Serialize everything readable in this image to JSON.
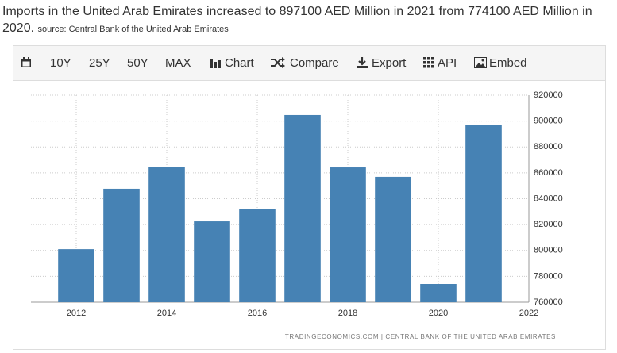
{
  "title": "Imports in the United Arab Emirates increased to 897100 AED Million in 2021 from 774100 AED Million in 2020.",
  "source": "source: Central Bank of the United Arab Emirates",
  "toolbar": [
    "10Y",
    "25Y",
    "50Y",
    "MAX",
    "Chart",
    "Compare",
    "Export",
    "API",
    "Embed"
  ],
  "chart_data": {
    "type": "bar",
    "x": [
      2012,
      2013,
      2014,
      2015,
      2016,
      2017,
      2018,
      2019,
      2020,
      2021
    ],
    "values": [
      801000,
      847700,
      864800,
      822500,
      832300,
      904700,
      864200,
      856900,
      774100,
      897100
    ],
    "color": "#4682b4",
    "xlim": [
      2011,
      2022
    ],
    "xticks": [
      2012,
      2014,
      2016,
      2018,
      2020,
      2022
    ],
    "ylim": [
      760000,
      920000
    ],
    "yticks": [
      760000,
      780000,
      800000,
      820000,
      840000,
      860000,
      880000,
      900000,
      920000
    ],
    "grid": true,
    "footer": "TRADINGECONOMICS.COM | CENTRAL BANK OF THE UNITED ARAB EMIRATES"
  }
}
